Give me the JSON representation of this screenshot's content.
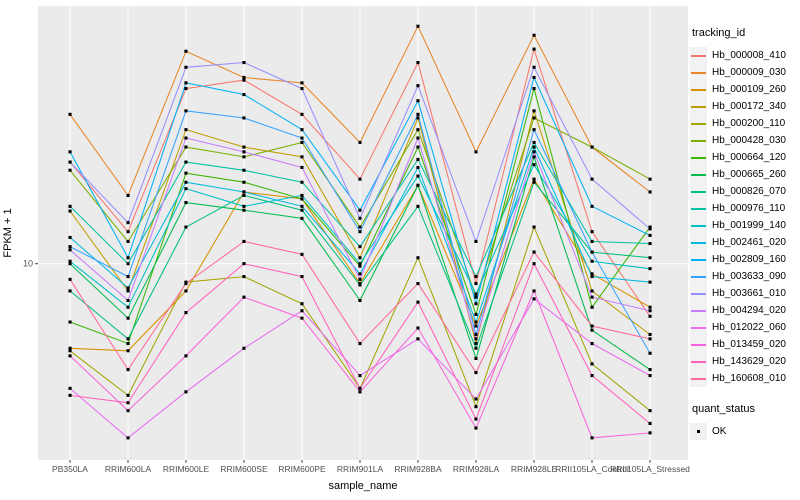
{
  "chart_data": {
    "type": "line",
    "title": "",
    "x_axis": {
      "label": "sample_name",
      "categories": [
        "PB350LA",
        "RRIM600LA",
        "RRIM600LE",
        "RRIM600SE",
        "RRIM600PE",
        "RRIM901LA",
        "RRIM928BA",
        "RRIM928LA",
        "RRIM928LE",
        "RRII105LA_Control",
        "RRII105LA_Stressed"
      ]
    },
    "y_axis": {
      "label": "FPKM + 1",
      "scale": "log10",
      "ticks": [
        {
          "value": 10,
          "label": "10"
        }
      ],
      "range": [
        2.0,
        80
      ]
    },
    "grid": true,
    "panel_background": "#EBEBEB",
    "gridline_color": "#FFFFFF",
    "tick_label_color": "#4D4D4D",
    "tick_mark_color": "#333333",
    "marker": {
      "shape": "square",
      "color": "#000000",
      "size": 3.1
    },
    "series": [
      {
        "name": "Hb_000008_410",
        "color": "#F8766D",
        "values": [
          23,
          13,
          42,
          45,
          34,
          20,
          52,
          8.5,
          58,
          13,
          6.5
        ]
      },
      {
        "name": "Hb_000009_030",
        "color": "#E88526",
        "values": [
          34,
          17.5,
          57,
          46,
          44,
          27,
          70,
          25,
          65,
          26,
          18
        ]
      },
      {
        "name": "Hb_000109_260",
        "color": "#D89000",
        "values": [
          5.0,
          4.9,
          8.0,
          18,
          17,
          8.5,
          19,
          6.0,
          20,
          9.2,
          7.0
        ]
      },
      {
        "name": "Hb_000172_340",
        "color": "#C09B00",
        "values": [
          15.4,
          8.0,
          30,
          26,
          24,
          10.5,
          33,
          5.2,
          35,
          8.0,
          5.6
        ]
      },
      {
        "name": "Hb_000200_110",
        "color": "#A3A500",
        "values": [
          4.9,
          3.4,
          8.6,
          9.0,
          7.2,
          3.6,
          10.5,
          3.1,
          13.5,
          4.4,
          3.0
        ]
      },
      {
        "name": "Hb_000428_030",
        "color": "#7CAE00",
        "values": [
          21.5,
          12,
          26,
          24,
          27,
          13.5,
          30,
          7.6,
          33,
          26,
          20
        ]
      },
      {
        "name": "Hb_000664_120",
        "color": "#39B600",
        "values": [
          6.2,
          5.2,
          21,
          19.5,
          17,
          9.8,
          26,
          6.6,
          42,
          7.0,
          13.5
        ]
      },
      {
        "name": "Hb_000665_260",
        "color": "#00BB4E",
        "values": [
          10,
          6.4,
          16.5,
          15.5,
          14.5,
          7.4,
          19,
          4.6,
          24,
          5.8,
          4.2
        ]
      },
      {
        "name": "Hb_000826_070",
        "color": "#00BF7D",
        "values": [
          8.0,
          5.4,
          13.5,
          17.5,
          15.5,
          8.4,
          16,
          5.0,
          19.5,
          11,
          10.5
        ]
      },
      {
        "name": "Hb_000976_110",
        "color": "#00C1A3",
        "values": [
          16,
          10,
          23,
          21.5,
          19.5,
          11.5,
          23.5,
          9.0,
          27,
          12,
          11.8
        ]
      },
      {
        "name": "Hb_001999_140",
        "color": "#00BFC4",
        "values": [
          10.2,
          7.0,
          18.5,
          16,
          17.5,
          10,
          20.5,
          7.8,
          22.5,
          10.2,
          9.6
        ]
      },
      {
        "name": "Hb_002461_020",
        "color": "#00BAE0",
        "values": [
          12.4,
          8.2,
          19.5,
          18,
          16,
          9.2,
          22,
          6.2,
          26,
          9.0,
          8.6
        ]
      },
      {
        "name": "Hb_002809_160",
        "color": "#00B0F6",
        "values": [
          25,
          10.5,
          44,
          40,
          30,
          15.5,
          38,
          7.2,
          46,
          16,
          12.6
        ]
      },
      {
        "name": "Hb_003633_090",
        "color": "#35A2FF",
        "values": [
          11.5,
          9.0,
          35,
          33,
          28,
          13,
          34,
          5.6,
          30,
          11,
          4.8
        ]
      },
      {
        "name": "Hb_003661_010",
        "color": "#9590FF",
        "values": [
          23,
          14,
          50,
          52,
          42,
          14.5,
          43,
          12,
          50,
          20,
          13.3
        ]
      },
      {
        "name": "Hb_004294_020",
        "color": "#C77CFF",
        "values": [
          11.2,
          7.4,
          28,
          25,
          22,
          8.8,
          28,
          5.4,
          25,
          7.6,
          6.8
        ]
      },
      {
        "name": "Hb_012022_060",
        "color": "#E76BF3",
        "values": [
          3.6,
          2.4,
          3.5,
          5.0,
          6.8,
          4.0,
          5.4,
          3.3,
          7.5,
          5.2,
          4.0
        ]
      },
      {
        "name": "Hb_013459_020",
        "color": "#FA62DB",
        "values": [
          4.7,
          3.0,
          4.7,
          7.6,
          6.4,
          3.5,
          5.9,
          2.6,
          8.0,
          2.4,
          2.5
        ]
      },
      {
        "name": "Hb_143629_020",
        "color": "#FF62BC",
        "values": [
          3.4,
          3.2,
          6.7,
          10,
          9.0,
          3.6,
          7.3,
          2.8,
          10,
          4.0,
          2.7
        ]
      },
      {
        "name": "Hb_160608_010",
        "color": "#FF6A98",
        "values": [
          8.8,
          4.2,
          8.5,
          12,
          10.8,
          5.2,
          8.5,
          4.1,
          11,
          6.0,
          5.4
        ]
      }
    ],
    "legends": {
      "tracking_id": {
        "title": "tracking_id"
      },
      "quant_status": {
        "title": "quant_status",
        "entries": [
          "OK"
        ]
      }
    },
    "legend_position": "right"
  }
}
